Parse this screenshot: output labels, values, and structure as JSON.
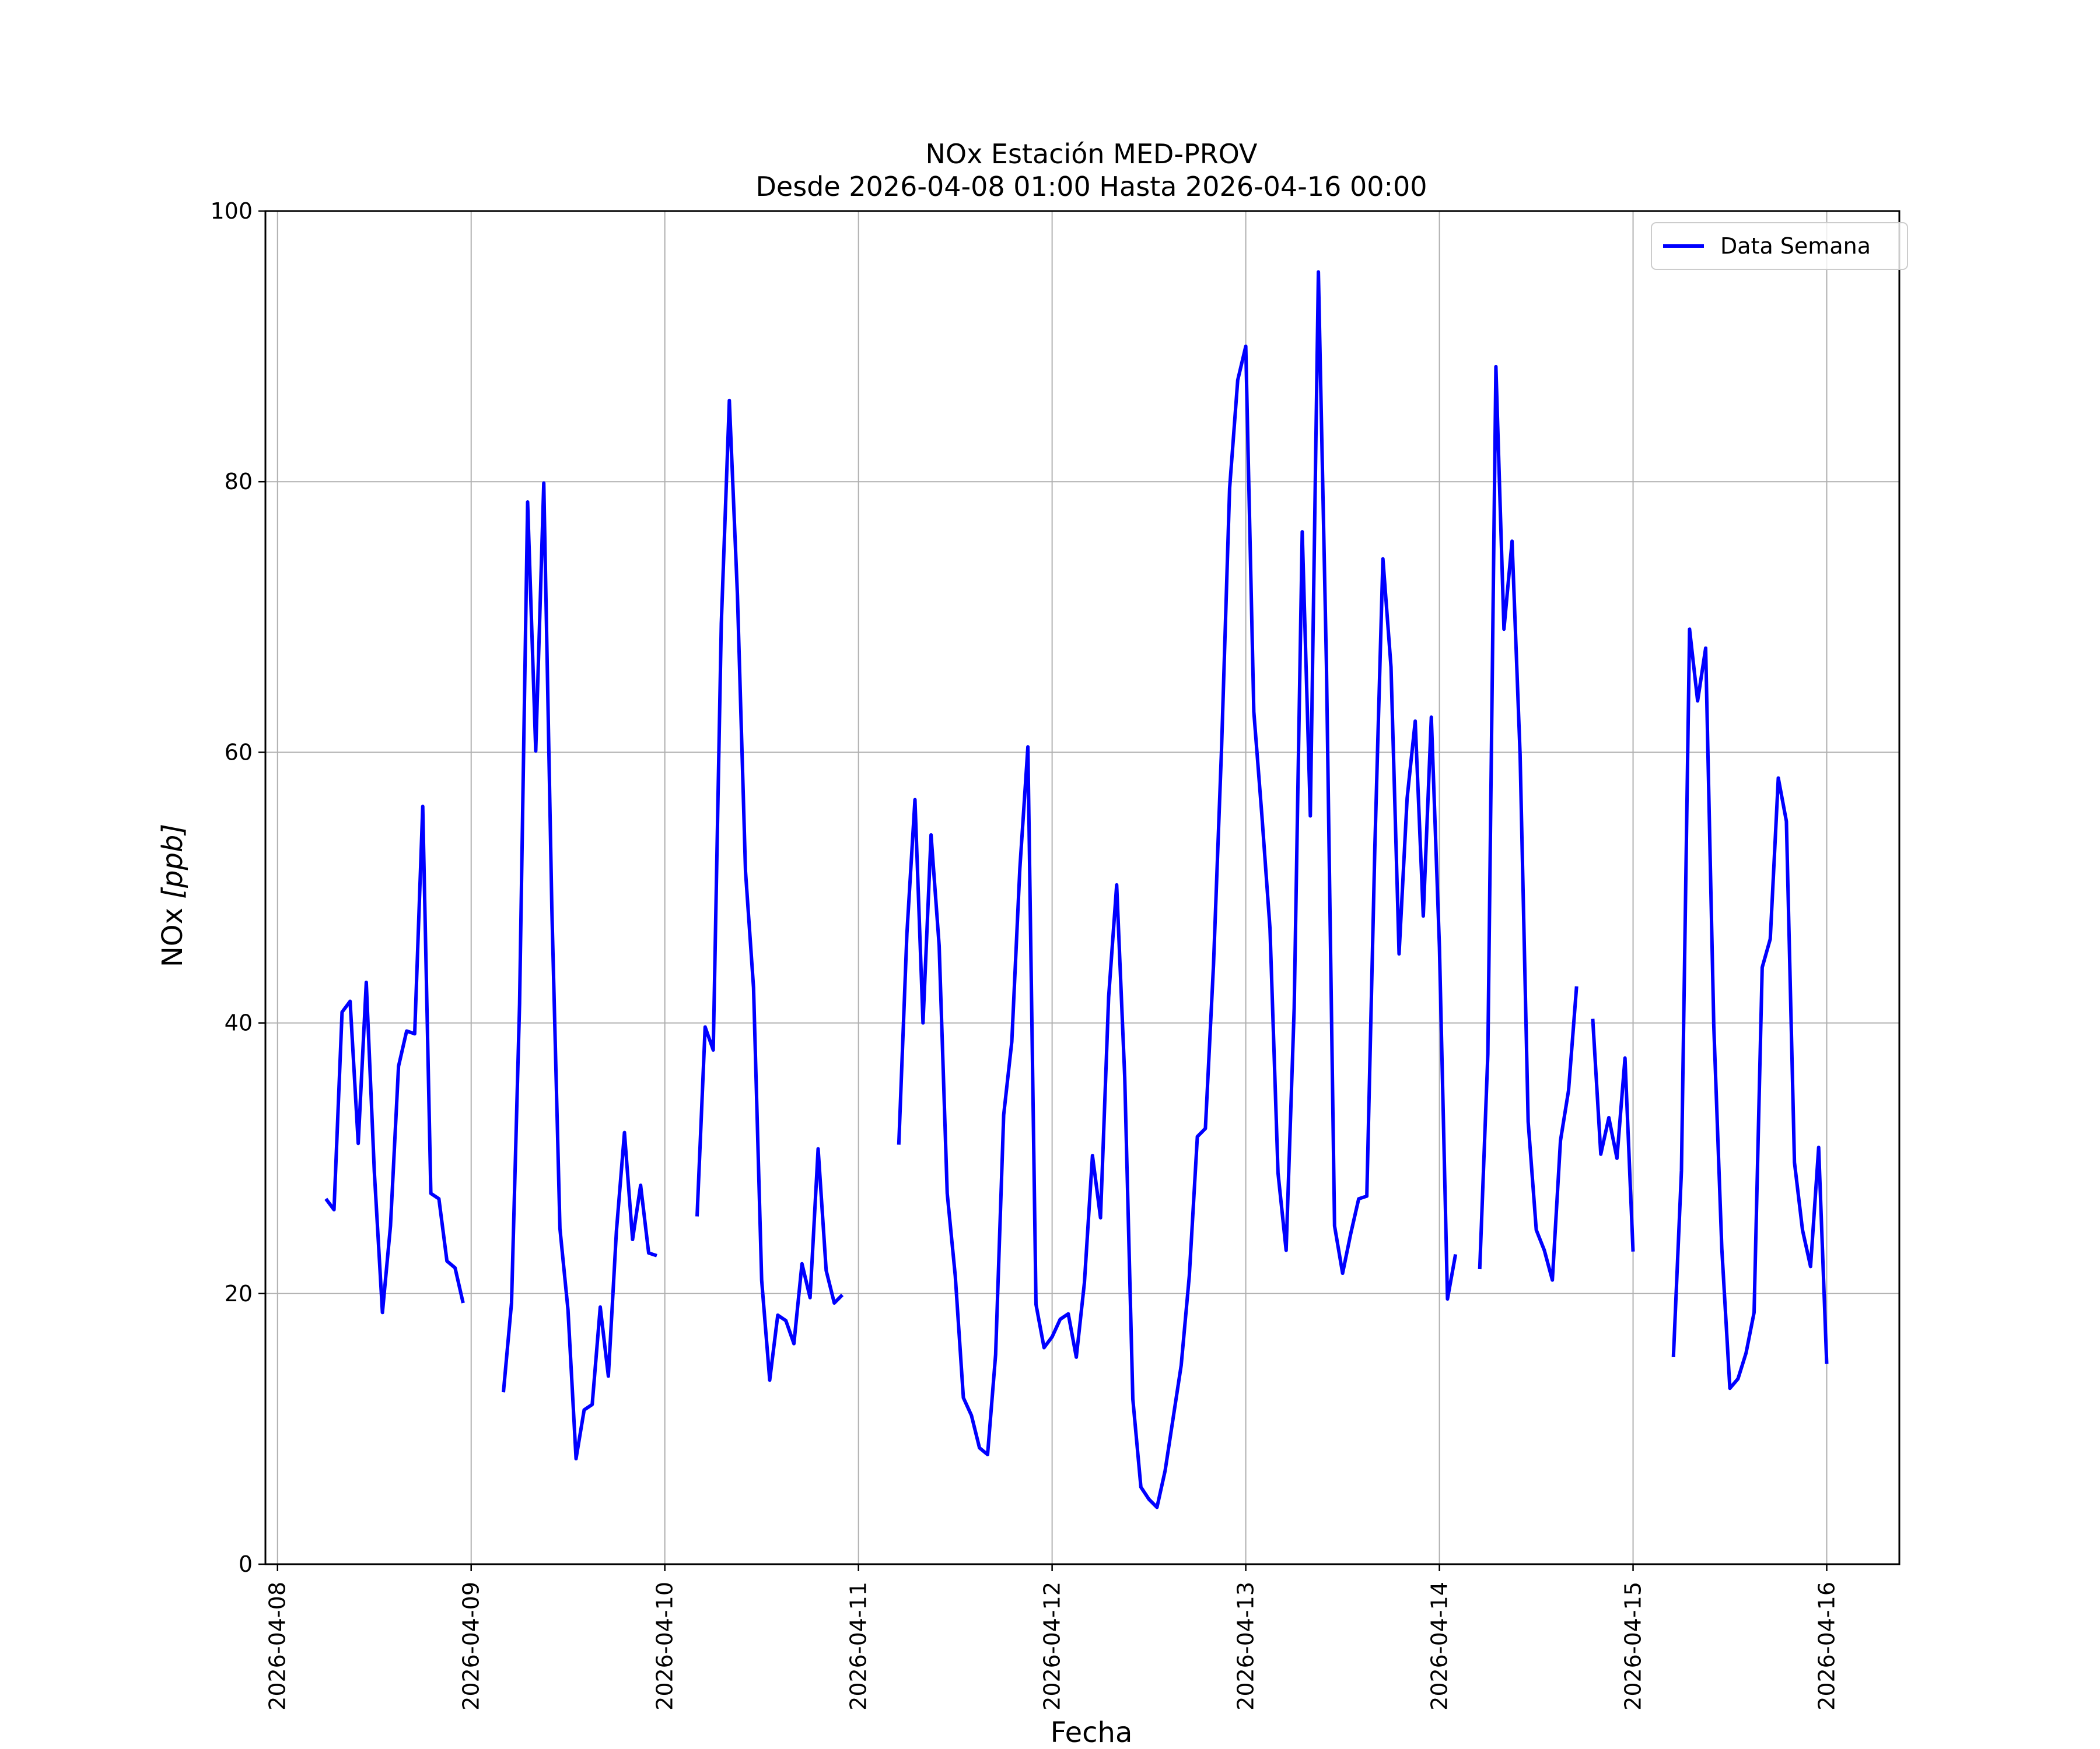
{
  "chart_data": {
    "type": "line",
    "title": "NOx Estación MED-PROV",
    "subtitle": "Desde 2026-04-08 01:00 Hasta 2026-04-16 00:00",
    "xlabel": "Fecha",
    "ylabel_prefix": "NOx ",
    "ylabel_unit": "[ppb]",
    "xlim": [
      "2026-04-07 22:30",
      "2026-04-16 09:00"
    ],
    "ylim": [
      0,
      100
    ],
    "x_ticks": [
      "2026-04-08",
      "2026-04-09",
      "2026-04-10",
      "2026-04-11",
      "2026-04-12",
      "2026-04-13",
      "2026-04-14",
      "2026-04-15",
      "2026-04-16"
    ],
    "y_ticks": [
      0,
      20,
      40,
      60,
      80,
      100
    ],
    "grid": true,
    "legend_position": "top-right",
    "series": [
      {
        "name": "Data Semana",
        "color": "#0000ff",
        "points": [
          [
            "2026-04-08 06:00",
            27
          ],
          [
            "2026-04-08 07:00",
            26.2
          ],
          [
            "2026-04-08 08:00",
            40.8
          ],
          [
            "2026-04-08 09:00",
            41.6
          ],
          [
            "2026-04-08 10:00",
            31.1
          ],
          [
            "2026-04-08 11:00",
            43
          ],
          [
            "2026-04-08 12:00",
            29
          ],
          [
            "2026-04-08 13:00",
            18.6
          ],
          [
            "2026-04-08 14:00",
            25
          ],
          [
            "2026-04-08 15:00",
            36.8
          ],
          [
            "2026-04-08 16:00",
            39.4
          ],
          [
            "2026-04-08 17:00",
            39.2
          ],
          [
            "2026-04-08 18:00",
            56
          ],
          [
            "2026-04-08 19:00",
            27.4
          ],
          [
            "2026-04-08 20:00",
            27
          ],
          [
            "2026-04-08 21:00",
            22.4
          ],
          [
            "2026-04-08 22:00",
            21.9
          ],
          [
            "2026-04-08 23:00",
            19.3
          ],
          [
            "2026-04-09 00:00",
            null
          ],
          [
            "2026-04-09 04:00",
            12.7
          ],
          [
            "2026-04-09 05:00",
            19.3
          ],
          [
            "2026-04-09 06:00",
            41.4
          ],
          [
            "2026-04-09 07:00",
            78.5
          ],
          [
            "2026-04-09 08:00",
            60.1
          ],
          [
            "2026-04-09 09:00",
            79.9
          ],
          [
            "2026-04-09 10:00",
            48.5
          ],
          [
            "2026-04-09 11:00",
            24.8
          ],
          [
            "2026-04-09 12:00",
            18.8
          ],
          [
            "2026-04-09 13:00",
            7.8
          ],
          [
            "2026-04-09 14:00",
            11.4
          ],
          [
            "2026-04-09 15:00",
            11.8
          ],
          [
            "2026-04-09 16:00",
            19
          ],
          [
            "2026-04-09 17:00",
            13.9
          ],
          [
            "2026-04-09 18:00",
            24.6
          ],
          [
            "2026-04-09 19:00",
            31.9
          ],
          [
            "2026-04-09 20:00",
            24
          ],
          [
            "2026-04-09 21:00",
            28
          ],
          [
            "2026-04-09 22:00",
            23
          ],
          [
            "2026-04-09 23:00",
            22.8
          ],
          [
            "2026-04-10 01:00",
            null
          ],
          [
            "2026-04-10 04:00",
            25.7
          ],
          [
            "2026-04-10 05:00",
            39.7
          ],
          [
            "2026-04-10 06:00",
            38
          ],
          [
            "2026-04-10 07:00",
            69.5
          ],
          [
            "2026-04-10 08:00",
            86
          ],
          [
            "2026-04-10 09:00",
            71.6
          ],
          [
            "2026-04-10 10:00",
            51.2
          ],
          [
            "2026-04-10 11:00",
            42.6
          ],
          [
            "2026-04-10 12:00",
            21
          ],
          [
            "2026-04-10 13:00",
            13.6
          ],
          [
            "2026-04-10 14:00",
            18.4
          ],
          [
            "2026-04-10 15:00",
            18
          ],
          [
            "2026-04-10 16:00",
            16.3
          ],
          [
            "2026-04-10 17:00",
            22.2
          ],
          [
            "2026-04-10 18:00",
            19.7
          ],
          [
            "2026-04-10 19:00",
            30.7
          ],
          [
            "2026-04-10 20:00",
            21.7
          ],
          [
            "2026-04-10 21:00",
            19.3
          ],
          [
            "2026-04-10 22:00",
            19.9
          ],
          [
            "2026-04-11 00:00",
            null
          ],
          [
            "2026-04-11 05:00",
            31
          ],
          [
            "2026-04-11 06:00",
            46.6
          ],
          [
            "2026-04-11 07:00",
            56.5
          ],
          [
            "2026-04-11 08:00",
            40
          ],
          [
            "2026-04-11 09:00",
            53.9
          ],
          [
            "2026-04-11 10:00",
            45.7
          ],
          [
            "2026-04-11 11:00",
            27.4
          ],
          [
            "2026-04-11 12:00",
            21.3
          ],
          [
            "2026-04-11 13:00",
            12.3
          ],
          [
            "2026-04-11 14:00",
            11
          ],
          [
            "2026-04-11 15:00",
            8.6
          ],
          [
            "2026-04-11 16:00",
            8.1
          ],
          [
            "2026-04-11 17:00",
            15.5
          ],
          [
            "2026-04-11 18:00",
            33.2
          ],
          [
            "2026-04-11 19:00",
            38.6
          ],
          [
            "2026-04-11 20:00",
            51.4
          ],
          [
            "2026-04-11 21:00",
            60.4
          ],
          [
            "2026-04-11 22:00",
            19.2
          ],
          [
            "2026-04-11 23:00",
            16
          ],
          [
            "2026-04-12 00:00",
            16.8
          ],
          [
            "2026-04-12 01:00",
            18.1
          ],
          [
            "2026-04-12 02:00",
            18.5
          ],
          [
            "2026-04-12 03:00",
            15.3
          ],
          [
            "2026-04-12 04:00",
            20.8
          ],
          [
            "2026-04-12 05:00",
            30.2
          ],
          [
            "2026-04-12 06:00",
            25.6
          ],
          [
            "2026-04-12 07:00",
            41.9
          ],
          [
            "2026-04-12 08:00",
            50.2
          ],
          [
            "2026-04-12 09:00",
            36
          ],
          [
            "2026-04-12 10:00",
            12.2
          ],
          [
            "2026-04-12 11:00",
            5.7
          ],
          [
            "2026-04-12 12:00",
            4.8
          ],
          [
            "2026-04-12 13:00",
            4.2
          ],
          [
            "2026-04-12 14:00",
            6.9
          ],
          [
            "2026-04-12 15:00",
            10.8
          ],
          [
            "2026-04-12 16:00",
            14.7
          ],
          [
            "2026-04-12 17:00",
            21.3
          ],
          [
            "2026-04-12 18:00",
            31.6
          ],
          [
            "2026-04-12 19:00",
            32.2
          ],
          [
            "2026-04-12 20:00",
            44.3
          ],
          [
            "2026-04-12 21:00",
            60.3
          ],
          [
            "2026-04-12 22:00",
            79.5
          ],
          [
            "2026-04-12 23:00",
            87.5
          ],
          [
            "2026-04-13 00:00",
            90
          ],
          [
            "2026-04-13 01:00",
            63
          ],
          [
            "2026-04-13 02:00",
            55.3
          ],
          [
            "2026-04-13 03:00",
            47
          ],
          [
            "2026-04-13 04:00",
            28.9
          ],
          [
            "2026-04-13 05:00",
            23.2
          ],
          [
            "2026-04-13 06:00",
            41.1
          ],
          [
            "2026-04-13 07:00",
            76.3
          ],
          [
            "2026-04-13 08:00",
            55.3
          ],
          [
            "2026-04-13 09:00",
            95.5
          ],
          [
            "2026-04-13 10:00",
            66.4
          ],
          [
            "2026-04-13 11:00",
            25
          ],
          [
            "2026-04-13 12:00",
            21.5
          ],
          [
            "2026-04-13 13:00",
            24.4
          ],
          [
            "2026-04-13 14:00",
            27
          ],
          [
            "2026-04-13 15:00",
            27.2
          ],
          [
            "2026-04-13 16:00",
            53
          ],
          [
            "2026-04-13 17:00",
            74.3
          ],
          [
            "2026-04-13 18:00",
            66.3
          ],
          [
            "2026-04-13 19:00",
            45.1
          ],
          [
            "2026-04-13 20:00",
            56.6
          ],
          [
            "2026-04-13 21:00",
            62.3
          ],
          [
            "2026-04-13 22:00",
            47.9
          ],
          [
            "2026-04-13 23:00",
            62.6
          ],
          [
            "2026-04-14 00:00",
            45.6
          ],
          [
            "2026-04-14 01:00",
            19.6
          ],
          [
            "2026-04-14 02:00",
            22.9
          ],
          [
            "2026-04-14 03:00",
            null
          ],
          [
            "2026-04-14 05:00",
            21.8
          ],
          [
            "2026-04-14 06:00",
            37.7
          ],
          [
            "2026-04-14 07:00",
            88.5
          ],
          [
            "2026-04-14 08:00",
            69.1
          ],
          [
            "2026-04-14 09:00",
            75.6
          ],
          [
            "2026-04-14 10:00",
            59.8
          ],
          [
            "2026-04-14 11:00",
            32.7
          ],
          [
            "2026-04-14 12:00",
            24.7
          ],
          [
            "2026-04-14 13:00",
            23.2
          ],
          [
            "2026-04-14 14:00",
            21
          ],
          [
            "2026-04-14 15:00",
            31.3
          ],
          [
            "2026-04-14 16:00",
            35
          ],
          [
            "2026-04-14 17:00",
            42.7
          ],
          [
            "2026-04-14 18:00",
            null
          ],
          [
            "2026-04-14 19:00",
            40.3
          ],
          [
            "2026-04-14 20:00",
            30.3
          ],
          [
            "2026-04-14 21:00",
            33
          ],
          [
            "2026-04-14 22:00",
            30
          ],
          [
            "2026-04-14 23:00",
            37.4
          ],
          [
            "2026-04-15 00:00",
            23.1
          ],
          [
            "2026-04-15 02:00",
            null
          ],
          [
            "2026-04-15 05:00",
            15.3
          ],
          [
            "2026-04-15 06:00",
            29.1
          ],
          [
            "2026-04-15 07:00",
            69.1
          ],
          [
            "2026-04-15 08:00",
            63.8
          ],
          [
            "2026-04-15 09:00",
            67.7
          ],
          [
            "2026-04-15 10:00",
            39.8
          ],
          [
            "2026-04-15 11:00",
            23.3
          ],
          [
            "2026-04-15 12:00",
            13
          ],
          [
            "2026-04-15 13:00",
            13.7
          ],
          [
            "2026-04-15 14:00",
            15.6
          ],
          [
            "2026-04-15 15:00",
            18.6
          ],
          [
            "2026-04-15 16:00",
            44.1
          ],
          [
            "2026-04-15 17:00",
            46.2
          ],
          [
            "2026-04-15 18:00",
            58.1
          ],
          [
            "2026-04-15 19:00",
            54.9
          ],
          [
            "2026-04-15 20:00",
            29.7
          ],
          [
            "2026-04-15 21:00",
            24.7
          ],
          [
            "2026-04-15 22:00",
            22
          ],
          [
            "2026-04-15 23:00",
            30.8
          ],
          [
            "2026-04-16 00:00",
            14.8
          ]
        ]
      }
    ]
  }
}
